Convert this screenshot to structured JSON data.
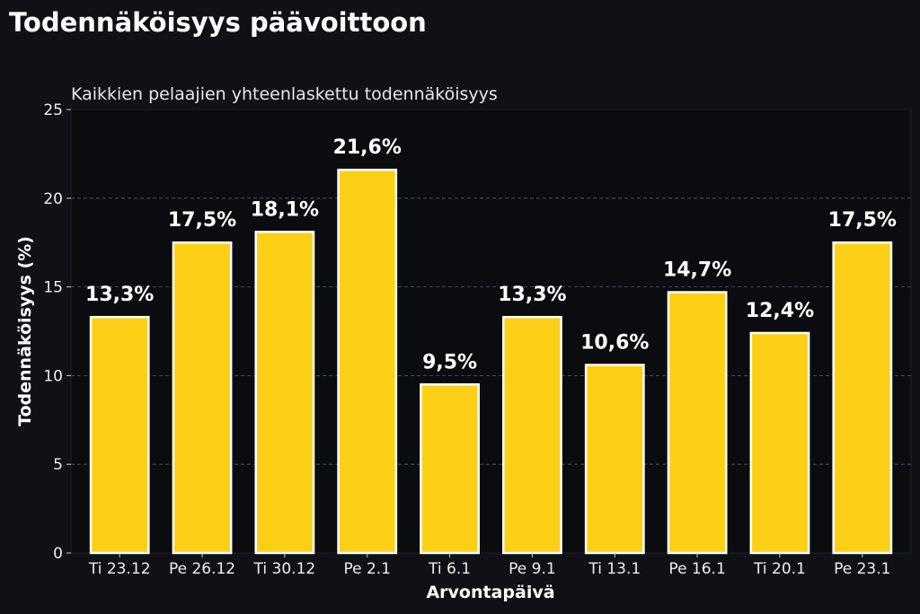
{
  "chart_data": {
    "type": "bar",
    "title": "Todennäköisyys päävoittoon",
    "subtitle": "Kaikkien pelaajien yhteenlaskettu todennäköisyys",
    "xlabel": "Arvontapäivä",
    "ylabel": "Todennäköisyys (%)",
    "ylim": [
      0,
      25
    ],
    "yticks": [
      0,
      5,
      10,
      15,
      20,
      25
    ],
    "grid": "y-dashed",
    "categories": [
      "Ti 23.12",
      "Pe 26.12",
      "Ti 30.12",
      "Pe 2.1",
      "Ti 6.1",
      "Pe 9.1",
      "Ti 13.1",
      "Pe 16.1",
      "Ti 20.1",
      "Pe 23.1"
    ],
    "values": [
      13.3,
      17.5,
      18.1,
      21.6,
      9.5,
      13.3,
      10.6,
      14.7,
      12.4,
      17.5
    ],
    "data_labels": [
      "13,3%",
      "17,5%",
      "18,1%",
      "21,6%",
      "9,5%",
      "13,3%",
      "10,6%",
      "14,7%",
      "12,4%",
      "17,5%"
    ],
    "colors": {
      "bar": "#fdd017",
      "bar_edge": "#ffffff",
      "background": "#0f1117",
      "plot_background": "#0b0c10",
      "text": "#ffffff",
      "grid": "#555a66"
    }
  }
}
